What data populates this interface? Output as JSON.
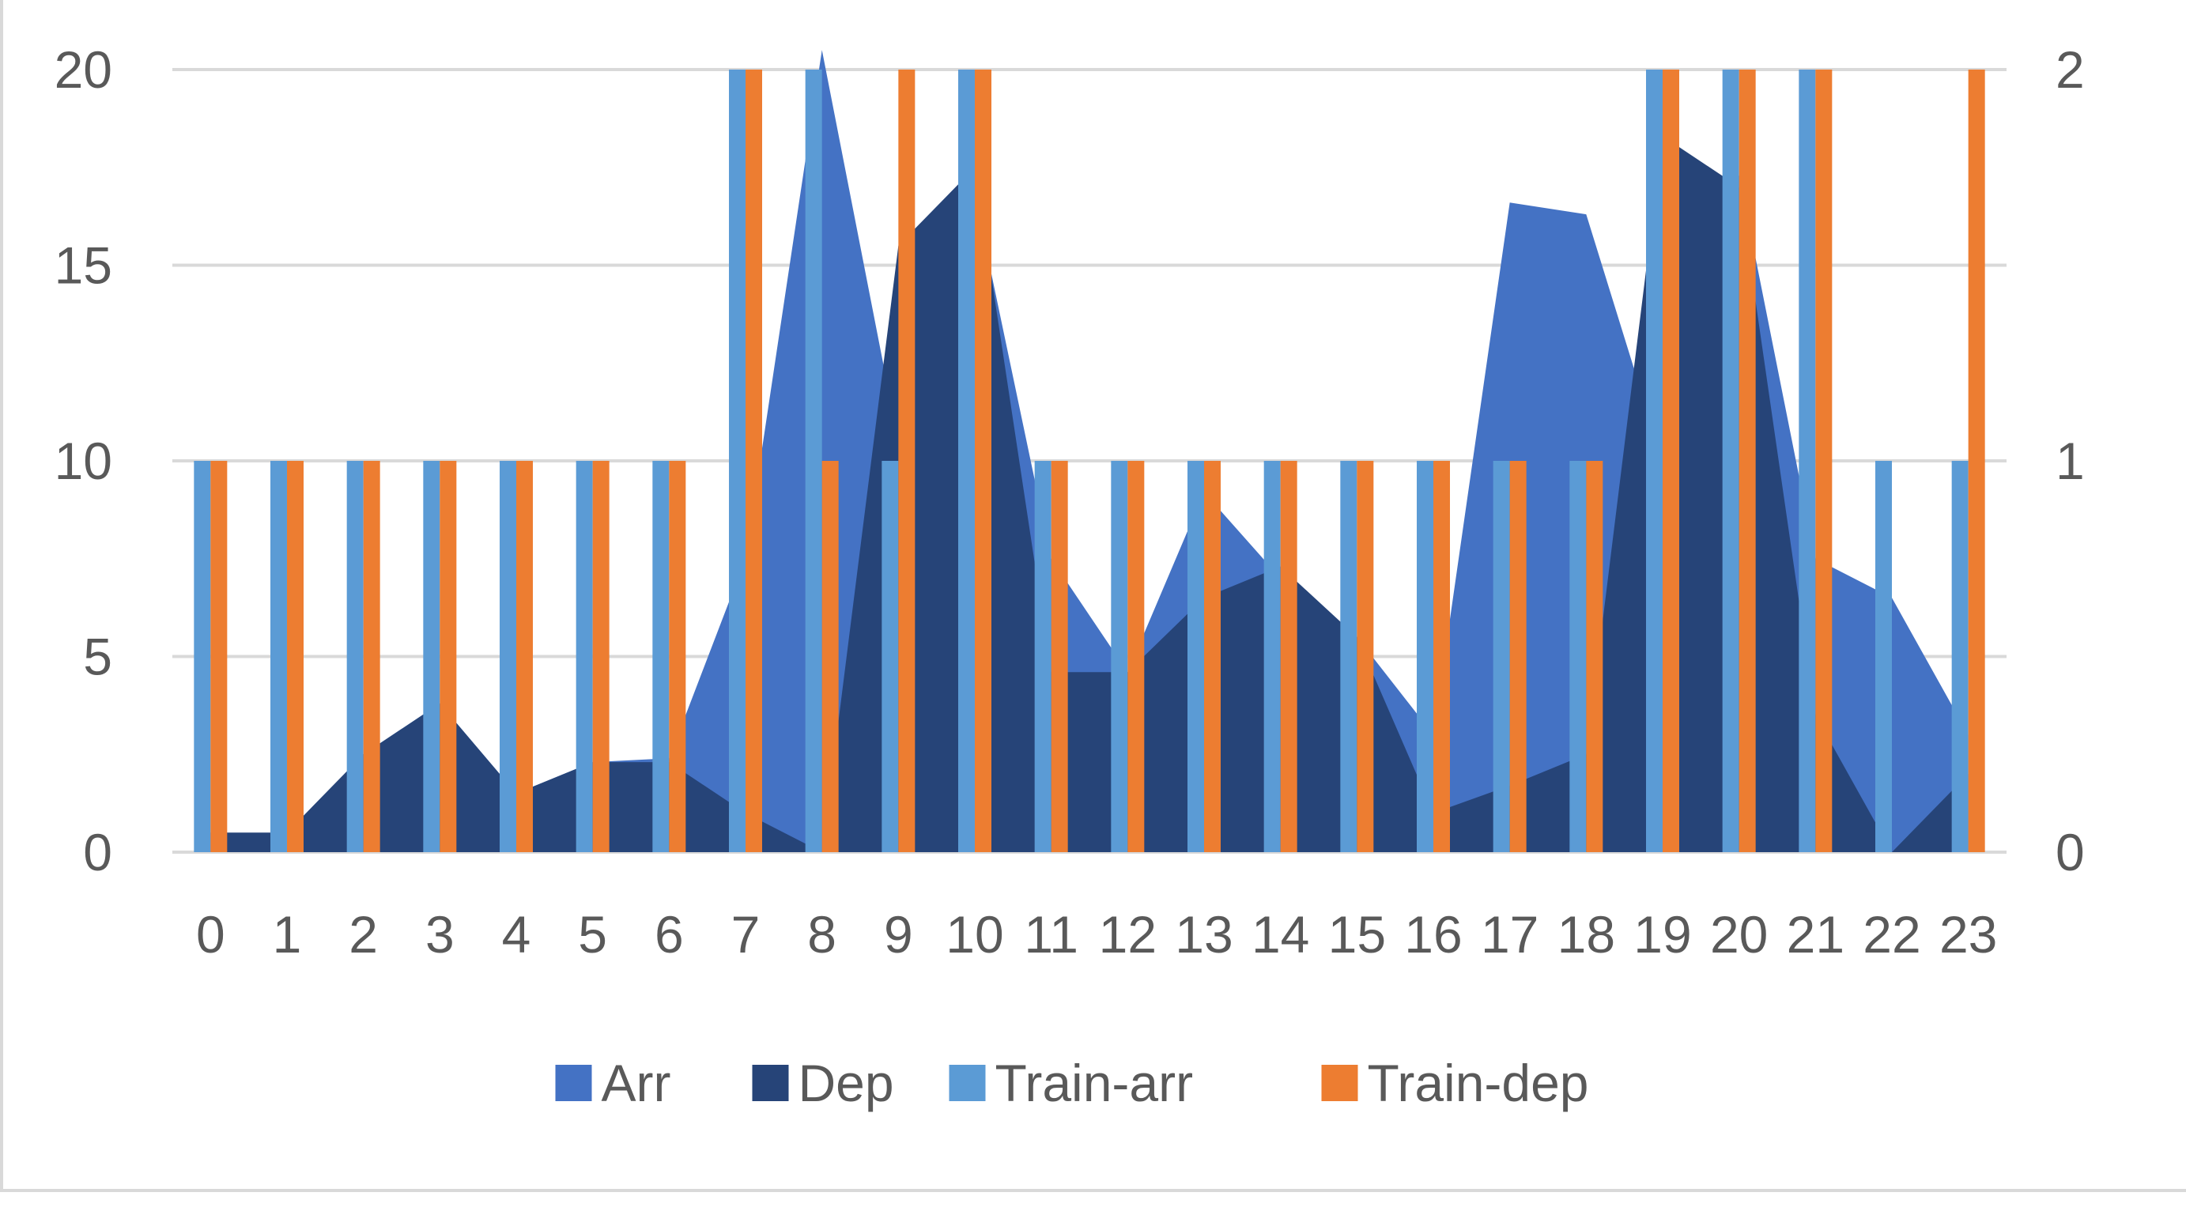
{
  "chart_data": {
    "type": "bar",
    "title": "",
    "xlabel": "",
    "ylabel": "",
    "categories": [
      "0",
      "1",
      "2",
      "3",
      "4",
      "5",
      "6",
      "7",
      "8",
      "9",
      "10",
      "11",
      "12",
      "13",
      "14",
      "15",
      "16",
      "17",
      "18",
      "19",
      "20",
      "21",
      "22",
      "23"
    ],
    "y_left": {
      "range": [
        0,
        20
      ],
      "ticks": [
        "0",
        "5",
        "10",
        "15",
        "20"
      ]
    },
    "y_right": {
      "range": [
        0,
        2
      ],
      "ticks": [
        "0",
        "1",
        "2"
      ]
    },
    "grid": true,
    "legend_position": "bottom",
    "series": [
      {
        "name": "Arr",
        "kind": "area",
        "axis": "left",
        "color": "#4472C4",
        "values": [
          0.5,
          0.3,
          2.5,
          3.8,
          1.5,
          2.3,
          2.4,
          7.5,
          20.5,
          10.5,
          16.8,
          7.5,
          4.6,
          9.2,
          7.0,
          5.5,
          3.0,
          16.6,
          16.3,
          10.0,
          17.3,
          7.5,
          6.5,
          3.0
        ]
      },
      {
        "name": "Dep",
        "kind": "area",
        "axis": "left",
        "color": "#264478",
        "values": [
          0.5,
          0.5,
          2.5,
          3.8,
          1.5,
          2.3,
          2.3,
          1.0,
          0.0,
          15.5,
          17.5,
          4.6,
          4.6,
          6.5,
          7.3,
          5.5,
          1.0,
          1.7,
          2.5,
          18.3,
          17.0,
          3.5,
          0.0,
          2.0
        ]
      },
      {
        "name": "Train-arr",
        "kind": "bar",
        "axis": "right",
        "color": "#5B9BD5",
        "values": [
          1,
          1,
          1,
          1,
          1,
          1,
          1,
          2,
          2,
          1,
          2,
          1,
          1,
          1,
          1,
          1,
          1,
          1,
          1,
          2,
          2,
          2,
          1,
          1
        ]
      },
      {
        "name": "Train-dep",
        "kind": "bar",
        "axis": "right",
        "color": "#ED7D31",
        "values": [
          1,
          1,
          1,
          1,
          1,
          1,
          1,
          2,
          1,
          2,
          2,
          1,
          1,
          1,
          1,
          1,
          1,
          1,
          1,
          2,
          2,
          2,
          0,
          2
        ]
      }
    ]
  },
  "colors": {
    "gridline": "#D9D9D9",
    "axis_text": "#595959",
    "border": "#D9D9D9"
  }
}
